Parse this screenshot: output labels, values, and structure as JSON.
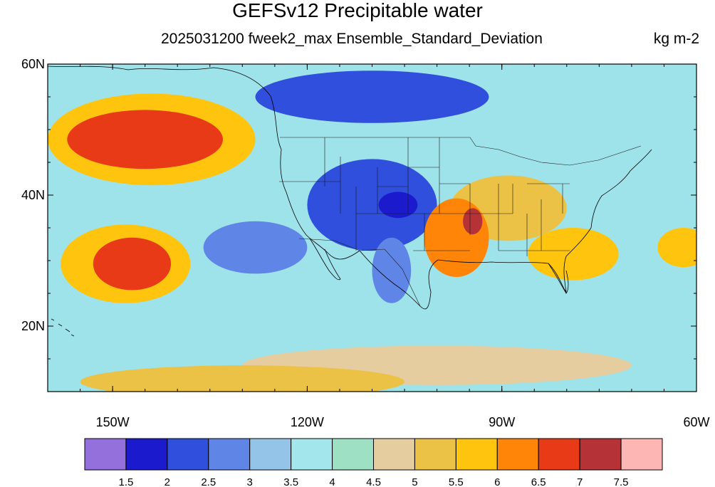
{
  "title": "GEFSv12 Precipitable water",
  "subtitle": "2025031200 fweek2_max Ensemble_Standard_Deviation",
  "units": "kg m-2",
  "map": {
    "projection": "cylindrical-equidistant",
    "lon_range": [
      -160,
      -60
    ],
    "lat_range": [
      10,
      60
    ],
    "lat_ticks": [
      {
        "value": 60,
        "label": "60N"
      },
      {
        "value": 40,
        "label": "40N"
      },
      {
        "value": 20,
        "label": "20N"
      }
    ],
    "lon_ticks": [
      {
        "value": -150,
        "label": "150W"
      },
      {
        "value": -120,
        "label": "120W"
      },
      {
        "value": -90,
        "label": "90W"
      },
      {
        "value": -60,
        "label": "60W"
      }
    ],
    "background_level_color": "#9fe3ea"
  },
  "colorbar": {
    "colors": [
      "#9370db",
      "#1b1bcd",
      "#2f4fdc",
      "#5f86e6",
      "#94c4e8",
      "#a3e6ec",
      "#9de0c4",
      "#e6cda0",
      "#ecc246",
      "#fec40e",
      "#fe8507",
      "#e83a16",
      "#b53236",
      "#fdb6b3"
    ],
    "labels": [
      "1.5",
      "2",
      "2.5",
      "3",
      "3.5",
      "4",
      "4.5",
      "5",
      "5.5",
      "6",
      "6.5",
      "7",
      "7.5"
    ]
  },
  "chart_data": {
    "type": "heatmap",
    "title": "GEFSv12 Precipitable water",
    "subtitle": "2025031200 fweek2_max Ensemble_Standard_Deviation",
    "units": "kg m-2",
    "levels": [
      1.5,
      2,
      2.5,
      3,
      3.5,
      4,
      4.5,
      5,
      5.5,
      6,
      6.5,
      7,
      7.5
    ],
    "blobs": [
      {
        "lon": -145,
        "lat": 48.5,
        "rlon": 12,
        "rlat": 4.5,
        "value": 6.8
      },
      {
        "lon": -144,
        "lat": 48.5,
        "rlon": 16,
        "rlat": 7,
        "value": 5.6
      },
      {
        "lon": -147,
        "lat": 29.5,
        "rlon": 6,
        "rlat": 4,
        "value": 6.8
      },
      {
        "lon": -148,
        "lat": 29.5,
        "rlon": 10,
        "rlat": 6,
        "value": 5.6
      },
      {
        "lon": -110,
        "lat": 38.5,
        "rlon": 10,
        "rlat": 7,
        "value": 2.2
      },
      {
        "lon": -106,
        "lat": 38.5,
        "rlon": 3,
        "rlat": 2,
        "value": 1.5
      },
      {
        "lon": -110,
        "lat": 55,
        "rlon": 18,
        "rlat": 4,
        "value": 2.3
      },
      {
        "lon": -107,
        "lat": 28.5,
        "rlon": 3,
        "rlat": 5,
        "value": 2.5
      },
      {
        "lon": -97,
        "lat": 33.5,
        "rlon": 5,
        "rlat": 6,
        "value": 6.4
      },
      {
        "lon": -94.5,
        "lat": 36,
        "rlon": 1.5,
        "rlat": 2,
        "value": 7.4
      },
      {
        "lon": -89,
        "lat": 38,
        "rlon": 9,
        "rlat": 5,
        "value": 5.3
      },
      {
        "lon": -79,
        "lat": 31,
        "rlon": 7,
        "rlat": 4,
        "value": 5.7
      },
      {
        "lon": -100,
        "lat": 14,
        "rlon": 30,
        "rlat": 3,
        "value": 4.9
      },
      {
        "lon": -130,
        "lat": 11.5,
        "rlon": 25,
        "rlat": 2.5,
        "value": 5.3
      },
      {
        "lon": -128,
        "lat": 32,
        "rlon": 8,
        "rlat": 4,
        "value": 2.8
      },
      {
        "lon": -62,
        "lat": 32,
        "rlon": 4,
        "rlat": 3,
        "value": 5.7
      }
    ]
  }
}
